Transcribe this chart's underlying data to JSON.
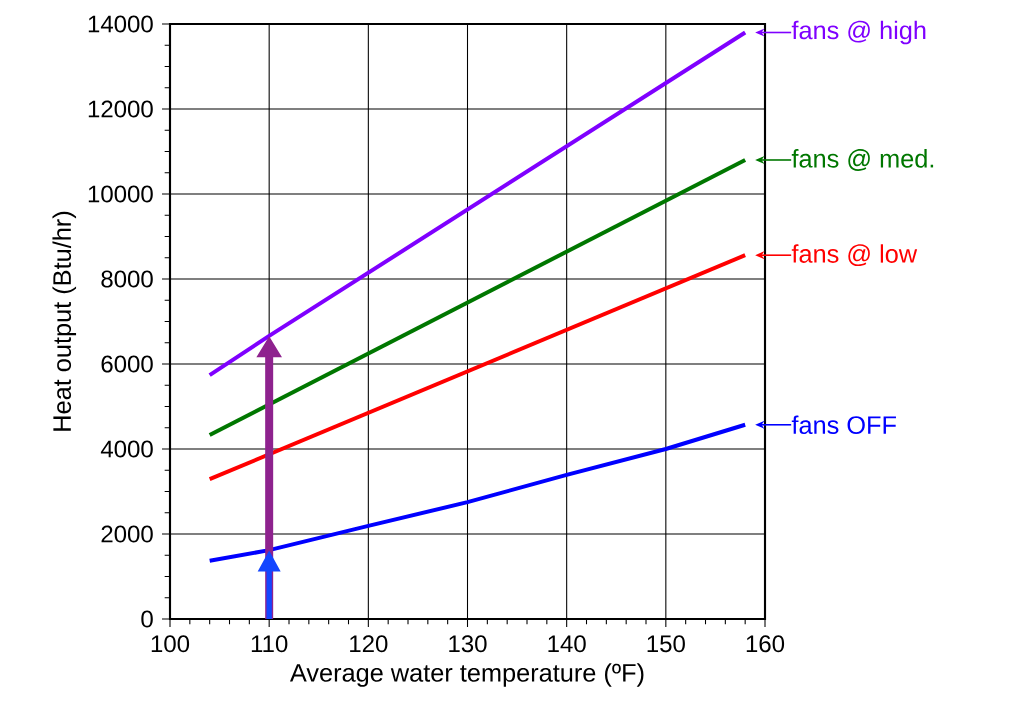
{
  "chart_data": {
    "type": "line",
    "xlabel": "Average water temperature (ºF)",
    "ylabel": "Heat output (Btu/hr)",
    "xlim": [
      100,
      160
    ],
    "xticks": [
      100,
      110,
      120,
      130,
      140,
      150,
      160
    ],
    "ylim": [
      0,
      14000
    ],
    "yticks": [
      0,
      2000,
      4000,
      6000,
      8000,
      10000,
      12000,
      14000
    ],
    "grid": true,
    "legend": "right",
    "marker": "none",
    "line_style": "solid",
    "series": [
      {
        "name": "fans OFF",
        "color": "#0000ff",
        "x": [
          104,
          110,
          120,
          130,
          140,
          150,
          158
        ],
        "values": [
          1370,
          1620,
          2190,
          2750,
          3390,
          4000,
          4570
        ]
      },
      {
        "name": "fans @ low",
        "color": "#ff0000",
        "x": [
          104,
          158
        ],
        "values": [
          3290,
          8560
        ]
      },
      {
        "name": "fans @ med.",
        "color": "#007700",
        "x": [
          104,
          158
        ],
        "values": [
          4330,
          10800
        ]
      },
      {
        "name": "fans @ high",
        "color": "#7f00ff",
        "x": [
          104,
          110,
          158
        ],
        "values": [
          5740,
          6660,
          13800
        ]
      }
    ]
  }
}
